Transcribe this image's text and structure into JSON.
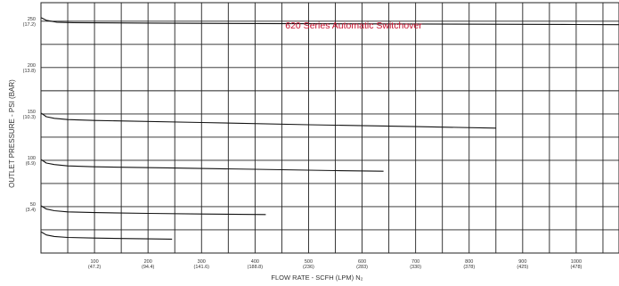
{
  "chart_data": {
    "type": "line",
    "title": "620 Series Automatic Switchover",
    "xlabel": "FLOW RATE - SCFH (LPM) N₂",
    "ylabel": "OUTLET PRESSURE - PSI (BAR)",
    "xlim": [
      0,
      1080
    ],
    "ylim": [
      0,
      270
    ],
    "grid": true,
    "x_ticks": [
      {
        "value": 100,
        "label": "100",
        "sub": "(47.2)"
      },
      {
        "value": 200,
        "label": "200",
        "sub": "(94.4)"
      },
      {
        "value": 300,
        "label": "300",
        "sub": "(141.6)"
      },
      {
        "value": 400,
        "label": "400",
        "sub": "(188.8)"
      },
      {
        "value": 500,
        "label": "500",
        "sub": "(236)"
      },
      {
        "value": 600,
        "label": "600",
        "sub": "(283)"
      },
      {
        "value": 700,
        "label": "700",
        "sub": "(330)"
      },
      {
        "value": 800,
        "label": "800",
        "sub": "(378)"
      },
      {
        "value": 900,
        "label": "900",
        "sub": "(425)"
      },
      {
        "value": 1000,
        "label": "1000",
        "sub": "(478)"
      }
    ],
    "y_ticks": [
      {
        "value": 50,
        "label": "50",
        "sub": "(3.4)"
      },
      {
        "value": 100,
        "label": "100",
        "sub": "(6.9)"
      },
      {
        "value": 150,
        "label": "150",
        "sub": "(10.3)"
      },
      {
        "value": 200,
        "label": "200",
        "sub": "(13.8)"
      },
      {
        "value": 250,
        "label": "250",
        "sub": "(17.2)"
      }
    ],
    "series": [
      {
        "x": [
          0,
          10,
          30,
          60,
          200,
          400,
          700,
          1000,
          1080
        ],
        "y": [
          254,
          251,
          249,
          248.5,
          248,
          247.5,
          247,
          246.5,
          246.3
        ]
      },
      {
        "x": [
          0,
          10,
          25,
          50,
          100,
          300,
          500,
          700,
          850
        ],
        "y": [
          151,
          147,
          145.3,
          143.9,
          143,
          140.8,
          138.4,
          136.3,
          134.7
        ]
      },
      {
        "x": [
          0,
          10,
          25,
          50,
          100,
          250,
          400,
          550,
          640
        ],
        "y": [
          101,
          97,
          95.4,
          94,
          93,
          91.7,
          90.3,
          88.9,
          88.2
        ]
      },
      {
        "x": [
          0,
          10,
          25,
          50,
          100,
          200,
          300,
          420
        ],
        "y": [
          51,
          47.5,
          45.6,
          44.4,
          43.6,
          42.8,
          42.1,
          41.5
        ]
      },
      {
        "x": [
          0,
          10,
          25,
          50,
          100,
          200,
          245
        ],
        "y": [
          23,
          19.5,
          17.9,
          16.8,
          16.1,
          15.3,
          15
        ]
      }
    ]
  }
}
